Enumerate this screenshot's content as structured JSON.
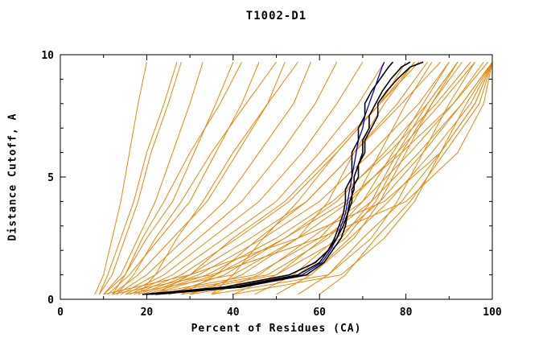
{
  "title": "T1002-D1",
  "colors": {
    "background": "#FFFFFF",
    "frame": "#000000",
    "orange": "#E8870E",
    "black": "#000000",
    "blue": "#0000C8"
  },
  "chart_data": {
    "type": "line",
    "title": "T1002-D1",
    "xlabel": "Percent of Residues (CA)",
    "ylabel": "Distance Cutoff, A",
    "xlim": [
      0,
      100
    ],
    "ylim": [
      0,
      10
    ],
    "x_ticks": [
      0,
      20,
      40,
      60,
      80,
      100
    ],
    "y_ticks": [
      0,
      5,
      10
    ],
    "x_minor_step": 10,
    "y_minor_step": 1,
    "grid": false,
    "legend": "none",
    "groups": [
      {
        "name": "model-curves-orange",
        "color": "#E8870E",
        "width": 1,
        "y_levels": [
          0.2,
          1,
          2.5,
          4,
          6,
          8,
          9.7
        ],
        "series": [
          {
            "name": "m01",
            "x": [
              8,
              10,
              12,
              14,
              16,
              18,
              20
            ]
          },
          {
            "name": "m02",
            "x": [
              9,
              12,
              15,
              18,
              21,
              25,
              28
            ]
          },
          {
            "name": "m03",
            "x": [
              10,
              14,
              18,
              22,
              26,
              30,
              33
            ]
          },
          {
            "name": "m04",
            "x": [
              10,
              15,
              20,
              26,
              31,
              36,
              40
            ]
          },
          {
            "name": "m05",
            "x": [
              11,
              16,
              23,
              30,
              36,
              42,
              46
            ]
          },
          {
            "name": "m06",
            "x": [
              12,
              18,
              26,
              34,
              41,
              48,
              52
            ]
          },
          {
            "name": "m07",
            "x": [
              13,
              20,
              29,
              38,
              46,
              54,
              58
            ]
          },
          {
            "name": "m08",
            "x": [
              14,
              22,
              32,
              42,
              51,
              59,
              64
            ]
          },
          {
            "name": "m09",
            "x": [
              15,
              24,
              35,
              46,
              56,
              64,
              70
            ]
          },
          {
            "name": "m10",
            "x": [
              16,
              26,
              38,
              50,
              60,
              69,
              75
            ]
          },
          {
            "name": "m11",
            "x": [
              17,
              28,
              41,
              53,
              64,
              74,
              80
            ]
          },
          {
            "name": "m12",
            "x": [
              18,
              30,
              44,
              57,
              68,
              78,
              85
            ]
          },
          {
            "name": "m13",
            "x": [
              19,
              32,
              47,
              60,
              72,
              83,
              90
            ]
          },
          {
            "name": "m14",
            "x": [
              20,
              34,
              50,
              63,
              76,
              87,
              95
            ]
          },
          {
            "name": "m15",
            "x": [
              21,
              36,
              52,
              66,
              79,
              91,
              99
            ]
          },
          {
            "name": "m16",
            "x": [
              25,
              38,
              52,
              64,
              75,
              85,
              92
            ]
          },
          {
            "name": "m17",
            "x": [
              30,
              42,
              55,
              67,
              78,
              88,
              96
            ]
          },
          {
            "name": "m18",
            "x": [
              35,
              46,
              58,
              70,
              81,
              91,
              98
            ]
          },
          {
            "name": "m19",
            "x": [
              40,
              50,
              61,
              72,
              83,
              93,
              100
            ]
          },
          {
            "name": "m20",
            "x": [
              12,
              15,
              19,
              24,
              30,
              37,
              42
            ]
          },
          {
            "name": "m21",
            "x": [
              13,
              17,
              22,
              28,
              35,
              43,
              50
            ]
          },
          {
            "name": "m22",
            "x": [
              9,
              11,
              14,
              17,
              20,
              24,
              27
            ]
          },
          {
            "name": "m23",
            "x": [
              22,
              30,
              40,
              52,
              63,
              74,
              82
            ]
          },
          {
            "name": "m24",
            "x": [
              28,
              36,
              46,
              57,
              68,
              79,
              88
            ]
          },
          {
            "name": "m25",
            "x": [
              45,
              54,
              64,
              74,
              84,
              93,
              100
            ]
          },
          {
            "name": "m26",
            "x": [
              50,
              58,
              67,
              76,
              86,
              95,
              100
            ]
          },
          {
            "name": "m27",
            "x": [
              55,
              62,
              70,
              79,
              88,
              96,
              100
            ]
          },
          {
            "name": "m28",
            "x": [
              35,
              40,
              47,
              55,
              64,
              74,
              83
            ]
          },
          {
            "name": "m29",
            "x": [
              18,
              22,
              27,
              33,
              40,
              48,
              55
            ]
          },
          {
            "name": "m30",
            "x": [
              60,
              66,
              73,
              81,
              89,
              97,
              100
            ]
          },
          {
            "name": "m31",
            "x": [
              20,
              45,
              60,
              68,
              74,
              80,
              86
            ]
          },
          {
            "name": "m32",
            "x": [
              25,
              50,
              65,
              72,
              78,
              85,
              92
            ]
          },
          {
            "name": "m33",
            "x": [
              15,
              40,
              55,
              62,
              68,
              75,
              82
            ]
          },
          {
            "name": "m34",
            "x": [
              10,
              30,
              55,
              75,
              88,
              96,
              100
            ]
          },
          {
            "name": "m35",
            "x": [
              12,
              35,
              60,
              80,
              92,
              98,
              100
            ]
          },
          {
            "name": "m36",
            "x": [
              30,
              58,
              68,
              74,
              80,
              86,
              92
            ]
          },
          {
            "name": "m37",
            "x": [
              35,
              62,
              72,
              78,
              84,
              90,
              96
            ]
          },
          {
            "name": "m38",
            "x": [
              40,
              65,
              75,
              82,
              88,
              94,
              100
            ]
          },
          {
            "name": "m39",
            "x": [
              22,
              48,
              62,
              70,
              77,
              84,
              90
            ]
          },
          {
            "name": "m40",
            "x": [
              28,
              55,
              66,
              73,
              79,
              86,
              93
            ]
          }
        ]
      },
      {
        "name": "model-curve-blue",
        "color": "#0000C8",
        "width": 1.3,
        "y_levels": [
          0.2,
          0.5,
          1,
          1.5,
          2,
          2.5,
          3,
          3.5,
          4,
          4.5,
          5,
          5.5,
          6,
          6.5,
          7,
          7.5,
          8,
          8.5,
          9,
          9.5,
          9.7
        ],
        "series": [
          {
            "name": "blue1",
            "x": [
              21,
              41,
              56,
              60.5,
              62.5,
              64,
              65,
              66,
              66.5,
              67,
              67.5,
              68,
              68.5,
              69,
              70,
              70.5,
              71.5,
              72.5,
              73.5,
              74.5,
              75
            ]
          }
        ]
      },
      {
        "name": "model-curves-black",
        "color": "#000000",
        "width": 1.6,
        "y_levels": [
          0.2,
          0.5,
          1,
          1.5,
          2,
          2.5,
          3,
          3.5,
          4,
          4.5,
          5,
          5.5,
          6,
          6.5,
          7,
          7.5,
          8,
          8.5,
          9,
          9.5,
          9.7
        ],
        "series": [
          {
            "name": "b1",
            "x": [
              20,
              40,
              55,
              60,
              62,
              63.5,
              64.5,
              65.5,
              66,
              66,
              67.5,
              67.5,
              67.5,
              69,
              69,
              70.5,
              70.5,
              72,
              74,
              76,
              77
            ]
          },
          {
            "name": "b2",
            "x": [
              22,
              42,
              57,
              61,
              63,
              65,
              66,
              66.5,
              67,
              68,
              68,
              69,
              70,
              70,
              71.5,
              71.5,
              73,
              74.5,
              76.5,
              79,
              81
            ]
          },
          {
            "name": "b3",
            "x": [
              19,
              38,
              53,
              59,
              62,
              64,
              65.5,
              66.5,
              67.5,
              67.5,
              69,
              69,
              70.5,
              70.5,
              72,
              73.5,
              73.5,
              75.5,
              78,
              81,
              84
            ]
          }
        ]
      }
    ]
  }
}
